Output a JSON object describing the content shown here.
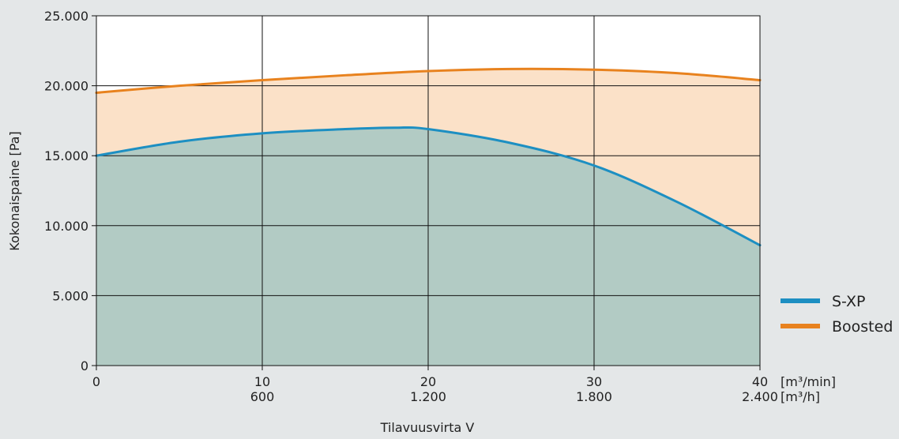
{
  "chart_data": {
    "type": "area",
    "title": "",
    "xlabel": "Tilavuusvirta V",
    "ylabel": "Kokonaispaine [Pa]",
    "xlim": [
      0,
      40
    ],
    "ylim": [
      0,
      25000
    ],
    "grid": true,
    "legend_position": "right",
    "x_ticks": [
      0,
      10,
      20,
      30,
      40
    ],
    "x_tick_labels": [
      "0",
      "10",
      "20",
      "30",
      "40"
    ],
    "x_tick_labels_secondary": [
      "",
      "600",
      "1.200",
      "1.800",
      "2.400"
    ],
    "x_unit_primary": "[m³/min]",
    "x_unit_secondary": "[m³/h]",
    "y_ticks": [
      0,
      5000,
      10000,
      15000,
      20000,
      25000
    ],
    "y_tick_labels": [
      "0",
      "5.000",
      "10.000",
      "15.000",
      "20.000",
      "25.000"
    ],
    "series": [
      {
        "name": "Boosted",
        "color": "#e8821e",
        "fill": "#fbe1c8",
        "x": [
          0,
          5,
          10,
          15,
          20,
          25,
          30,
          35,
          40
        ],
        "values": [
          19500,
          20000,
          20400,
          20750,
          21050,
          21200,
          21150,
          20900,
          20400
        ]
      },
      {
        "name": "S-XP",
        "color": "#1d8fc2",
        "fill": "#b2cbc4",
        "x": [
          0,
          5,
          10,
          15,
          18,
          20,
          25,
          30,
          35,
          40
        ],
        "values": [
          15000,
          16000,
          16600,
          16900,
          17000,
          16900,
          15900,
          14300,
          11700,
          8600
        ]
      }
    ]
  }
}
